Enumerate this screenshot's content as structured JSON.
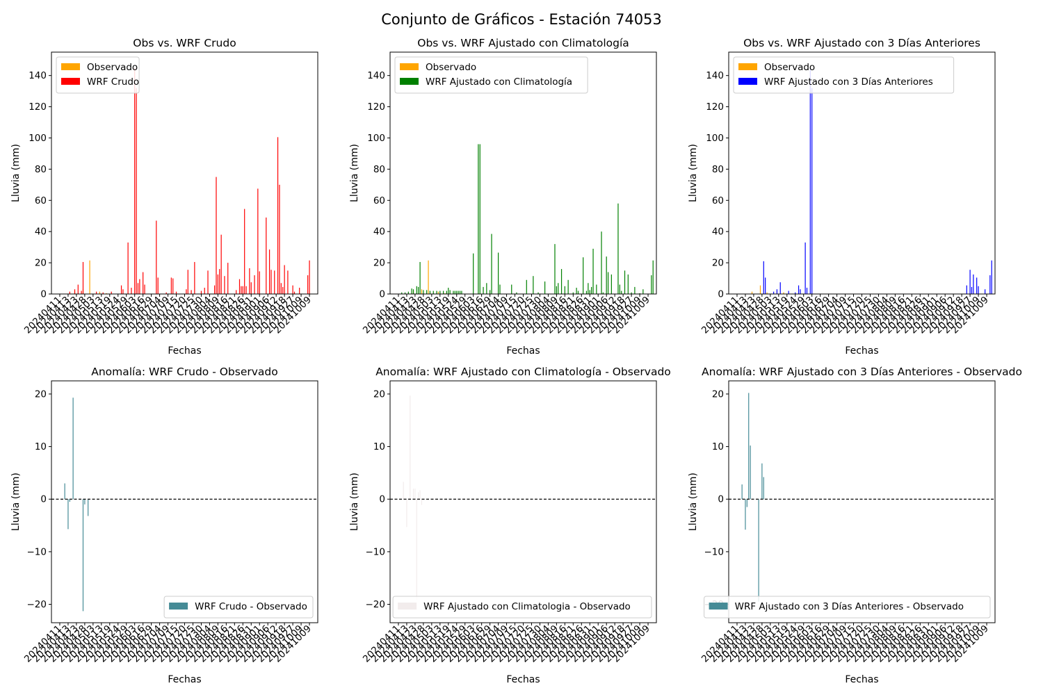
{
  "figure": {
    "suptitle": "Conjunto de Gráficos - Estación 74053"
  },
  "chart_data": [
    {
      "type": "bar",
      "title": "Obs vs. WRF Crudo",
      "xlabel": "Fechas",
      "ylabel": "Lluvia (mm)",
      "ylim": [
        0,
        155
      ],
      "yticks": [
        0,
        20,
        40,
        60,
        80,
        100,
        120,
        140
      ],
      "legend_position": "upper-left",
      "series": [
        {
          "name": "Observado",
          "color": "#ffa500",
          "values": [
            [
              14,
              2.0
            ],
            [
              19,
              3.0
            ],
            [
              23,
              21.5
            ],
            [
              29,
              1.5
            ],
            [
              33,
              0.5
            ]
          ]
        },
        {
          "name": "WRF Crudo",
          "color": "#ff0000",
          "values": [
            [
              11,
              1.5
            ],
            [
              14,
              3.0
            ],
            [
              16,
              6.0
            ],
            [
              18,
              2.0
            ],
            [
              19,
              20.5
            ],
            [
              27,
              1.5
            ],
            [
              31,
              1.0
            ],
            [
              36,
              1.5
            ],
            [
              42,
              5.5
            ],
            [
              43,
              3.0
            ],
            [
              46,
              33.0
            ],
            [
              48,
              4.0
            ],
            [
              50,
              145.0
            ],
            [
              51,
              132.0
            ],
            [
              52,
              7.0
            ],
            [
              53,
              9.5
            ],
            [
              55,
              14.0
            ],
            [
              56,
              6.0
            ],
            [
              63,
              47.0
            ],
            [
              64,
              10.5
            ],
            [
              69,
              1.0
            ],
            [
              72,
              10.5
            ],
            [
              73,
              10.0
            ],
            [
              75,
              1.5
            ],
            [
              81,
              3.0
            ],
            [
              82,
              15.5
            ],
            [
              84,
              2.5
            ],
            [
              86,
              20.5
            ],
            [
              90,
              2.0
            ],
            [
              92,
              4.0
            ],
            [
              94,
              15.0
            ],
            [
              98,
              5.5
            ],
            [
              99,
              75.0
            ],
            [
              100,
              12.5
            ],
            [
              101,
              16.0
            ],
            [
              102,
              38.0
            ],
            [
              104,
              11.5
            ],
            [
              106,
              20.0
            ],
            [
              111,
              2.5
            ],
            [
              113,
              9.5
            ],
            [
              114,
              5.0
            ],
            [
              115,
              5.0
            ],
            [
              116,
              54.5
            ],
            [
              117,
              5.0
            ],
            [
              119,
              16.5
            ],
            [
              120,
              7.5
            ],
            [
              122,
              12.0
            ],
            [
              124,
              67.5
            ],
            [
              125,
              14.5
            ],
            [
              129,
              49.0
            ],
            [
              131,
              28.5
            ],
            [
              132,
              15.5
            ],
            [
              134,
              15.0
            ],
            [
              136,
              100.5
            ],
            [
              137,
              70.0
            ],
            [
              138,
              7.0
            ],
            [
              139,
              4.5
            ],
            [
              140,
              18.5
            ],
            [
              142,
              15.0
            ],
            [
              145,
              5.5
            ],
            [
              146,
              1.5
            ],
            [
              149,
              4.0
            ],
            [
              154,
              12.0
            ],
            [
              155,
              21.5
            ]
          ]
        }
      ]
    },
    {
      "type": "bar",
      "title": "Obs vs. WRF Ajustado con Climatología",
      "xlabel": "Fechas",
      "ylabel": "Lluvia (mm)",
      "ylim": [
        0,
        155
      ],
      "yticks": [
        0,
        20,
        40,
        60,
        80,
        100,
        120,
        140
      ],
      "legend_position": "upper-left",
      "series": [
        {
          "name": "Observado",
          "color": "#ffa500",
          "values": [
            [
              14,
              2.0
            ],
            [
              19,
              3.0
            ],
            [
              23,
              21.5
            ],
            [
              29,
              1.5
            ],
            [
              33,
              0.5
            ]
          ]
        },
        {
          "name": "WRF Ajustado con Climatología",
          "color": "#008000",
          "values": [
            [
              7,
              1.0
            ],
            [
              9,
              1.0
            ],
            [
              11,
              1.5
            ],
            [
              13,
              3.5
            ],
            [
              14,
              3.0
            ],
            [
              16,
              5.0
            ],
            [
              17,
              4.5
            ],
            [
              18,
              20.5
            ],
            [
              20,
              2.5
            ],
            [
              22,
              2.5
            ],
            [
              24,
              2.0
            ],
            [
              26,
              2.0
            ],
            [
              28,
              2.0
            ],
            [
              30,
              2.0
            ],
            [
              32,
              2.0
            ],
            [
              34,
              2.0
            ],
            [
              35,
              4.0
            ],
            [
              36,
              2.5
            ],
            [
              38,
              2.0
            ],
            [
              39,
              2.0
            ],
            [
              40,
              2.0
            ],
            [
              41,
              2.0
            ],
            [
              42,
              2.0
            ],
            [
              43,
              2.0
            ],
            [
              50,
              26.0
            ],
            [
              53,
              96.0
            ],
            [
              54,
              96.0
            ],
            [
              56,
              4.5
            ],
            [
              58,
              7.0
            ],
            [
              60,
              2.5
            ],
            [
              61,
              38.5
            ],
            [
              65,
              26.5
            ],
            [
              66,
              6.0
            ],
            [
              73,
              6.0
            ],
            [
              76,
              1.0
            ],
            [
              82,
              9.0
            ],
            [
              86,
              11.5
            ],
            [
              89,
              1.0
            ],
            [
              93,
              8.0
            ],
            [
              99,
              32.0
            ],
            [
              100,
              5.0
            ],
            [
              101,
              7.0
            ],
            [
              103,
              16.0
            ],
            [
              105,
              5.0
            ],
            [
              107,
              9.0
            ],
            [
              110,
              1.0
            ],
            [
              112,
              4.0
            ],
            [
              113,
              2.0
            ],
            [
              116,
              23.5
            ],
            [
              118,
              2.0
            ],
            [
              119,
              7.0
            ],
            [
              120,
              2.5
            ],
            [
              121,
              4.5
            ],
            [
              122,
              29.0
            ],
            [
              124,
              6.0
            ],
            [
              127,
              40.0
            ],
            [
              128,
              1.0
            ],
            [
              130,
              24.0
            ],
            [
              131,
              14.0
            ],
            [
              133,
              12.5
            ],
            [
              137,
              58.0
            ],
            [
              138,
              6.0
            ],
            [
              139,
              2.0
            ],
            [
              141,
              15.0
            ],
            [
              143,
              12.5
            ],
            [
              145,
              1.0
            ],
            [
              147,
              4.5
            ],
            [
              150,
              0.5
            ],
            [
              152,
              3.0
            ],
            [
              157,
              12.0
            ],
            [
              158,
              21.5
            ]
          ]
        }
      ]
    },
    {
      "type": "bar",
      "title": "Obs vs. WRF Ajustado con 3 Días Anteriores",
      "xlabel": "Fechas",
      "ylabel": "Lluvia (mm)",
      "ylim": [
        0,
        155
      ],
      "yticks": [
        0,
        20,
        40,
        60,
        80,
        100,
        120,
        140
      ],
      "legend_position": "upper-left",
      "series": [
        {
          "name": "Observado",
          "color": "#ffa500",
          "values": [
            [
              14,
              1.5
            ],
            [
              19,
              5.5
            ],
            [
              23,
              1.0
            ],
            [
              29,
              2.0
            ],
            [
              33,
              1.0
            ]
          ]
        },
        {
          "name": "WRF Ajustado con 3 Días Anteriores",
          "color": "#0000ff",
          "values": [
            [
              21,
              21.0
            ],
            [
              22,
              10.5
            ],
            [
              27,
              1.5
            ],
            [
              29,
              3.0
            ],
            [
              31,
              7.5
            ],
            [
              36,
              2.0
            ],
            [
              40,
              1.0
            ],
            [
              42,
              5.5
            ],
            [
              43,
              3.0
            ],
            [
              46,
              33.0
            ],
            [
              47,
              4.0
            ],
            [
              49,
              145.0
            ],
            [
              50,
              132.0
            ],
            [
              143,
              5.5
            ],
            [
              145,
              15.5
            ],
            [
              146,
              4.5
            ],
            [
              147,
              12.5
            ],
            [
              149,
              10.5
            ],
            [
              150,
              5.0
            ],
            [
              154,
              3.0
            ],
            [
              157,
              12.0
            ],
            [
              158,
              21.5
            ]
          ]
        }
      ]
    },
    {
      "type": "bar",
      "title": "Anomalía: WRF Crudo - Observado",
      "xlabel": "Fechas",
      "ylabel": "Lluvia (mm)",
      "ylim": [
        -23.5,
        22.5
      ],
      "yticks": [
        -20,
        -10,
        0,
        10,
        20
      ],
      "legend_position": "lower-right",
      "zero_line": true,
      "series": [
        {
          "name": "WRF Crudo - Observado",
          "color": "#458b96",
          "values": [
            [
              8,
              3.0
            ],
            [
              10,
              -5.7
            ],
            [
              11,
              -0.5
            ],
            [
              13,
              19.3
            ],
            [
              19,
              -21.3
            ],
            [
              20,
              -1.0
            ],
            [
              22,
              -3.2
            ]
          ]
        }
      ]
    },
    {
      "type": "bar",
      "title": "Anomalía: WRF Ajustado con Climatología - Observado",
      "xlabel": "Fechas",
      "ylabel": "Lluvia (mm)",
      "ylim": [
        -23.5,
        22.5
      ],
      "yticks": [
        -20,
        -10,
        0,
        10,
        20
      ],
      "legend_position": "lower-right",
      "zero_line": true,
      "series": [
        {
          "name": "WRF Ajustado con Climatologia - Observado",
          "color": "#f2ecec",
          "values": [
            [
              8,
              3.3
            ],
            [
              10,
              -5.3
            ],
            [
              12,
              19.7
            ],
            [
              14,
              2.0
            ],
            [
              15,
              2.0
            ],
            [
              16,
              -19.2
            ],
            [
              17,
              1.3
            ],
            [
              18,
              1.7
            ],
            [
              19,
              -1.1
            ]
          ]
        }
      ]
    },
    {
      "type": "bar",
      "title": "Anomalía: WRF Ajustado con 3 Días Anteriores - Observado",
      "xlabel": "Fechas",
      "ylabel": "Lluvia (mm)",
      "ylim": [
        -23.5,
        22.5
      ],
      "yticks": [
        -20,
        -10,
        0,
        10,
        20
      ],
      "legend_position": "lower-right",
      "zero_line": true,
      "series": [
        {
          "name": "WRF Ajustado con 3 Días Anteriores - Observado",
          "color": "#458b96",
          "values": [
            [
              8,
              2.8
            ],
            [
              10,
              -5.8
            ],
            [
              11,
              -1.5
            ],
            [
              12,
              20.2
            ],
            [
              13,
              10.2
            ],
            [
              18,
              -19.5
            ],
            [
              20,
              6.8
            ],
            [
              21,
              4.2
            ]
          ]
        }
      ]
    }
  ],
  "x_axis": {
    "range": [
      0,
      160
    ],
    "tick_positions": [
      5,
      10,
      15,
      20,
      25,
      30,
      35,
      40,
      45,
      50,
      55,
      60,
      65,
      70,
      75,
      80,
      85,
      90,
      95,
      100,
      105,
      110,
      115,
      120,
      125,
      130,
      135,
      140,
      145,
      150,
      155
    ],
    "tick_labels": [
      "20240411",
      "20240413",
      "20240423",
      "20240428",
      "20240503",
      "20240513",
      "20240519",
      "20240524",
      "20240529",
      "20240603",
      "20240616",
      "20240629",
      "20240704",
      "20240709",
      "20240715",
      "20240720",
      "20240725",
      "20240730",
      "20240804",
      "20240809",
      "20240816",
      "20240821",
      "20240826",
      "20240831",
      "20240901",
      "20240906",
      "20240912",
      "20240918",
      "20240927",
      "20241009",
      "20241009"
    ]
  }
}
